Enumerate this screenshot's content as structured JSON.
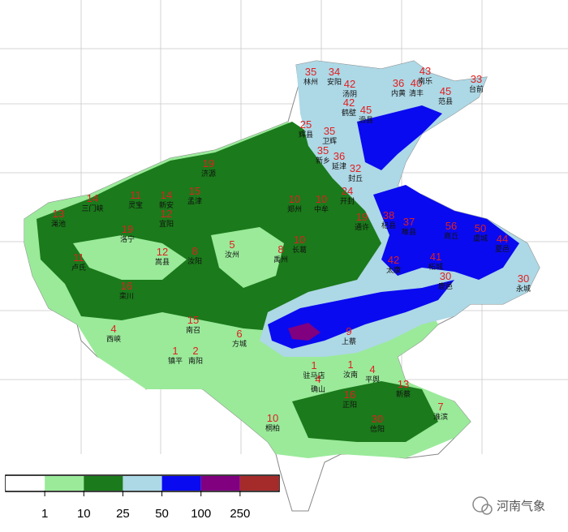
{
  "stations": [
    {
      "value": 35,
      "name": "林州"
    },
    {
      "value": 34,
      "name": "安阳"
    },
    {
      "value": 42,
      "name": "汤阴"
    },
    {
      "value": 36,
      "name": "内黄"
    },
    {
      "value": 40,
      "name": "清丰"
    },
    {
      "value": 43,
      "name": "南乐"
    },
    {
      "value": 33,
      "name": "台前"
    },
    {
      "value": 45,
      "name": "范县"
    },
    {
      "value": 42,
      "name": "鹤壁"
    },
    {
      "value": 45,
      "name": "滑县"
    },
    {
      "value": 25,
      "name": "辉县"
    },
    {
      "value": 35,
      "name": "卫辉"
    },
    {
      "value": 35,
      "name": "新乡"
    },
    {
      "value": 36,
      "name": "延津"
    },
    {
      "value": 32,
      "name": "封丘"
    },
    {
      "value": 19,
      "name": "济源"
    },
    {
      "value": 14,
      "name": "三门峡"
    },
    {
      "value": 11,
      "name": "灵宝"
    },
    {
      "value": 13,
      "name": "渑池"
    },
    {
      "value": 14,
      "name": "新安"
    },
    {
      "value": 15,
      "name": "孟津"
    },
    {
      "value": 10,
      "name": "郑州"
    },
    {
      "value": 10,
      "name": "中牟"
    },
    {
      "value": 24,
      "name": "开封"
    },
    {
      "value": 19,
      "name": "通许"
    },
    {
      "value": 38,
      "name": "杞县"
    },
    {
      "value": 37,
      "name": "睢县"
    },
    {
      "value": 56,
      "name": "商丘"
    },
    {
      "value": 50,
      "name": "虞城"
    },
    {
      "value": 44,
      "name": "夏邑"
    },
    {
      "value": 11,
      "name": "卢氏"
    },
    {
      "value": 19,
      "name": "洛宁"
    },
    {
      "value": 12,
      "name": "宜阳"
    },
    {
      "value": 12,
      "name": "嵩县"
    },
    {
      "value": 8,
      "name": "汝阳"
    },
    {
      "value": 5,
      "name": "汝州"
    },
    {
      "value": 8,
      "name": "禹州"
    },
    {
      "value": 10,
      "name": "长葛"
    },
    {
      "value": 42,
      "name": "太康"
    },
    {
      "value": 41,
      "name": "柘城"
    },
    {
      "value": 30,
      "name": "鹿邑"
    },
    {
      "value": 30,
      "name": "永城"
    },
    {
      "value": 16,
      "name": "栾川"
    },
    {
      "value": 4,
      "name": "西峡"
    },
    {
      "value": 15,
      "name": "南召"
    },
    {
      "value": 6,
      "name": "方城"
    },
    {
      "value": 1,
      "name": "镇平"
    },
    {
      "value": 2,
      "name": "南阳"
    },
    {
      "value": 9,
      "name": "上蔡"
    },
    {
      "value": 1,
      "name": "驻马店"
    },
    {
      "value": 1,
      "name": "汝南"
    },
    {
      "value": 4,
      "name": "平舆"
    },
    {
      "value": 4,
      "name": "确山"
    },
    {
      "value": 16,
      "name": "正阳"
    },
    {
      "value": 13,
      "name": "新蔡"
    },
    {
      "value": 7,
      "name": "淮滨"
    },
    {
      "value": 10,
      "name": "桐柏"
    },
    {
      "value": 30,
      "name": "信阳"
    }
  ],
  "legend": {
    "colors": [
      "#ffffff",
      "#9aea9a",
      "#1b7a1b",
      "#add8e6",
      "#0a0af0",
      "#800080",
      "#a52a2a"
    ],
    "ticks": [
      "1",
      "10",
      "25",
      "50",
      "100",
      "250"
    ]
  },
  "watermark": "河南气象"
}
